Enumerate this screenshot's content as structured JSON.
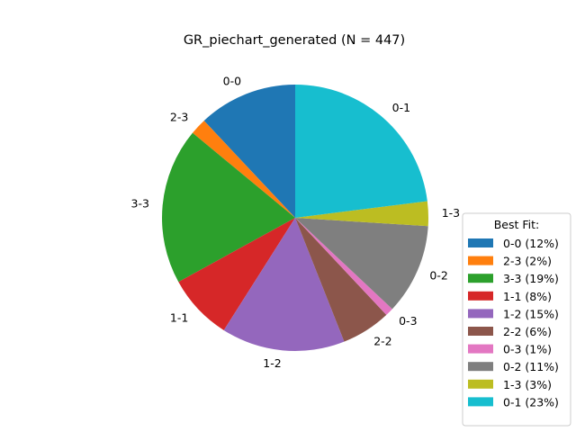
{
  "chart_data": {
    "type": "pie",
    "title": "GR_piechart_generated (N = 447)",
    "legend_title": "Best Fit:",
    "legend_position": "lower-right",
    "slices": [
      {
        "label": "0-0",
        "legend": "0-0 (12%)",
        "value": 12,
        "color": "#1f77b4"
      },
      {
        "label": "2-3",
        "legend": "2-3 (2%)",
        "value": 2,
        "color": "#ff7f0e"
      },
      {
        "label": "3-3",
        "legend": "3-3 (19%)",
        "value": 19,
        "color": "#2ca02c"
      },
      {
        "label": "1-1",
        "legend": "1-1 (8%)",
        "value": 8,
        "color": "#d62728"
      },
      {
        "label": "1-2",
        "legend": "1-2 (15%)",
        "value": 15,
        "color": "#9467bd"
      },
      {
        "label": "2-2",
        "legend": "2-2 (6%)",
        "value": 6,
        "color": "#8c564b"
      },
      {
        "label": "0-3",
        "legend": "0-3 (1%)",
        "value": 1,
        "color": "#e377c2"
      },
      {
        "label": "0-2",
        "legend": "0-2 (11%)",
        "value": 11,
        "color": "#7f7f7f"
      },
      {
        "label": "1-3",
        "legend": "1-3 (3%)",
        "value": 3,
        "color": "#bcbd22"
      },
      {
        "label": "0-1",
        "legend": "0-1 (23%)",
        "value": 23,
        "color": "#17becf"
      }
    ]
  }
}
